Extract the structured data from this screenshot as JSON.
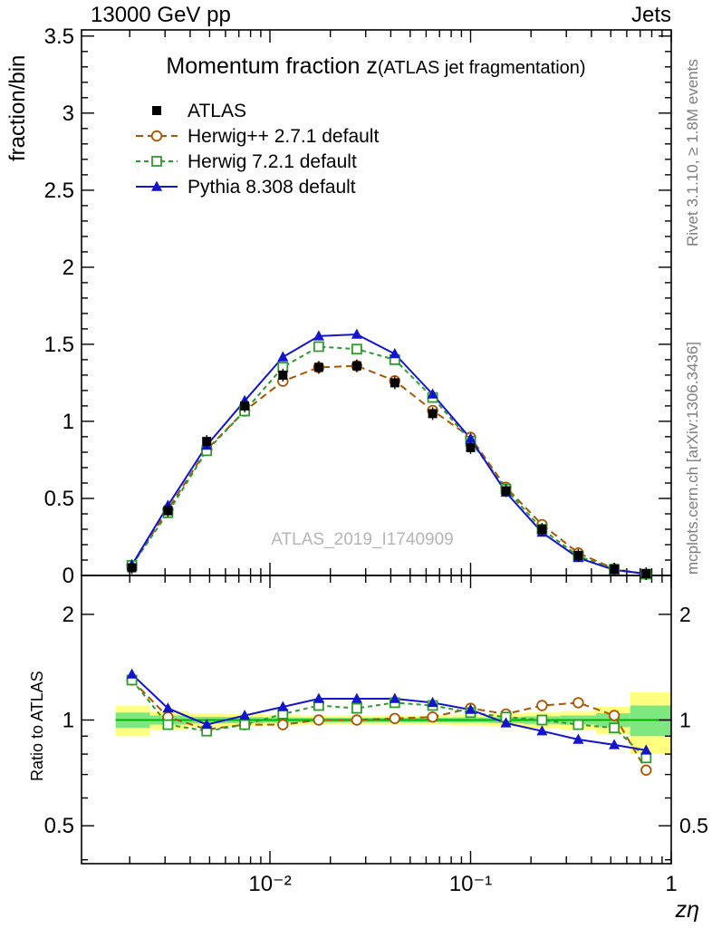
{
  "header": {
    "left": "13000 GeV pp",
    "right": "Jets"
  },
  "annotations": {
    "rivet": "Rivet 3.1.10, ≥ 1.8M events",
    "mcplots": "mcplots.cern.ch [arXiv:1306.3436]",
    "watermark": "ATLAS_2019_I1740909"
  },
  "chart_data": {
    "type": "line",
    "title": "Momentum fraction z",
    "title_paren": "(ATLAS jet fragmentation)",
    "xlabel": "zη",
    "ylabel_main": "fraction/bin",
    "ylabel_ratio": "Ratio to ATLAS",
    "x_scale": "log",
    "x_range": [
      0.00115,
      1.0
    ],
    "y_range_main": [
      0,
      3.54
    ],
    "y_range_ratio": [
      0.39,
      2.58
    ],
    "colors": {
      "band_yellow": "#ffff80",
      "band_green": "#7fe77f",
      "unity_line": "#00b300"
    },
    "x_ticks": {
      "major": [
        {
          "v": 0.01,
          "label": "10⁻²"
        },
        {
          "v": 0.1,
          "label": "10⁻¹"
        },
        {
          "v": 1,
          "label": "1"
        }
      ]
    },
    "y_ticks_main": {
      "major": [
        {
          "v": 0,
          "label": "0"
        },
        {
          "v": 0.5,
          "label": "0.5"
        },
        {
          "v": 1,
          "label": "1"
        },
        {
          "v": 1.5,
          "label": "1.5"
        },
        {
          "v": 2,
          "label": "2"
        },
        {
          "v": 2.5,
          "label": "2.5"
        },
        {
          "v": 3,
          "label": "3"
        },
        {
          "v": 3.5,
          "label": "3.5"
        }
      ]
    },
    "y_ticks_ratio": {
      "major": [
        {
          "v": 0.5,
          "label": "0.5"
        },
        {
          "v": 1,
          "label": "1"
        },
        {
          "v": 2,
          "label": "2"
        }
      ],
      "minor": [
        0.4,
        0.6,
        0.7,
        0.8,
        0.9
      ]
    },
    "x": [
      0.00205,
      0.0031,
      0.00484,
      0.00748,
      0.0116,
      0.0175,
      0.0271,
      0.0419,
      0.0647,
      0.1,
      0.15,
      0.227,
      0.344,
      0.52,
      0.75
    ],
    "series": [
      {
        "id": "atlas",
        "name": "ATLAS",
        "color": "#000000",
        "marker": "square-filled",
        "line": "none",
        "values": [
          0.05,
          0.42,
          0.87,
          1.1,
          1.3,
          1.35,
          1.36,
          1.25,
          1.05,
          0.83,
          0.55,
          0.3,
          0.13,
          0.042,
          0.012
        ]
      },
      {
        "id": "herwigpp",
        "name": "Herwig++ 2.7.1 default",
        "color": "#aa5500",
        "marker": "circle-open",
        "line": "dashed",
        "dash": "8,5",
        "values": [
          0.065,
          0.428,
          0.818,
          1.067,
          1.261,
          1.35,
          1.36,
          1.263,
          1.071,
          0.896,
          0.572,
          0.33,
          0.146,
          0.043,
          0.009
        ]
      },
      {
        "id": "herwig7",
        "name": "Herwig 7.2.1 default",
        "color": "#2e9b2e",
        "marker": "square-open",
        "line": "dashed",
        "dash": "5,4",
        "values": [
          0.065,
          0.407,
          0.809,
          1.067,
          1.352,
          1.485,
          1.469,
          1.4,
          1.155,
          0.872,
          0.561,
          0.3,
          0.126,
          0.04,
          0.009
        ]
      },
      {
        "id": "pythia",
        "name": "Pythia 8.308 default",
        "color": "#1414cc",
        "marker": "triangle-filled",
        "line": "solid",
        "values": [
          0.068,
          0.454,
          0.844,
          1.133,
          1.417,
          1.553,
          1.564,
          1.438,
          1.176,
          0.888,
          0.539,
          0.279,
          0.114,
          0.036,
          0.01
        ]
      }
    ],
    "ratio": {
      "series": [
        {
          "id": "herwigpp",
          "values": [
            1.3,
            1.02,
            0.94,
            0.97,
            0.97,
            1.0,
            1.0,
            1.01,
            1.02,
            1.08,
            1.04,
            1.1,
            1.12,
            1.03,
            0.72
          ]
        },
        {
          "id": "herwig7",
          "values": [
            1.3,
            0.97,
            0.93,
            0.97,
            1.04,
            1.1,
            1.08,
            1.12,
            1.1,
            1.05,
            1.02,
            1.0,
            0.97,
            0.95,
            0.78
          ]
        },
        {
          "id": "pythia",
          "values": [
            1.35,
            1.08,
            0.97,
            1.03,
            1.09,
            1.15,
            1.15,
            1.15,
            1.12,
            1.07,
            0.98,
            0.93,
            0.88,
            0.85,
            0.82
          ]
        }
      ],
      "band_x_edges": [
        0.0017,
        0.00252,
        0.00387,
        0.00602,
        0.00931,
        0.01425,
        0.0218,
        0.0337,
        0.0521,
        0.0804,
        0.1225,
        0.1845,
        0.2795,
        0.423,
        0.6245,
        1.0
      ],
      "yellow_halfwidth": [
        0.1,
        0.06,
        0.045,
        0.04,
        0.035,
        0.03,
        0.03,
        0.03,
        0.03,
        0.035,
        0.04,
        0.05,
        0.06,
        0.09,
        0.2
      ],
      "green_halfwidth": [
        0.05,
        0.03,
        0.022,
        0.02,
        0.017,
        0.015,
        0.015,
        0.015,
        0.015,
        0.017,
        0.02,
        0.025,
        0.03,
        0.045,
        0.1
      ]
    }
  }
}
